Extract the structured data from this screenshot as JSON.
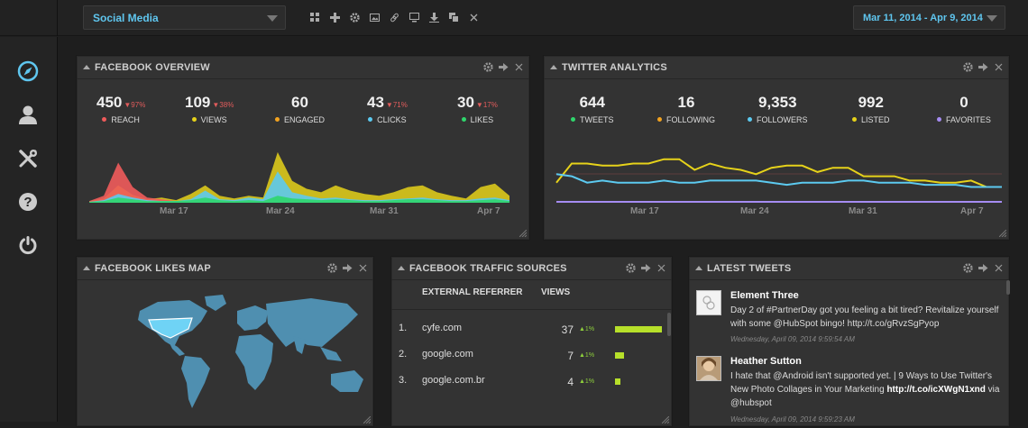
{
  "topbar": {
    "dashboard_name": "Social Media",
    "date_range": "Mar 11, 2014 - Apr 9, 2014",
    "tools": [
      "grid-icon",
      "add-icon",
      "gear-icon",
      "image-icon",
      "link-icon",
      "monitor-icon",
      "download-icon",
      "copy-icon",
      "close-icon"
    ]
  },
  "sidebar": {
    "icons": [
      "compass-icon",
      "user-icon",
      "tools-icon",
      "help-icon",
      "power-icon"
    ]
  },
  "colors": {
    "accent": "#5fc6ef",
    "red": "#ef5b5b",
    "yellow": "#e6d21a",
    "orange": "#f3a31f",
    "blue": "#5ccaf0",
    "green": "#2fd66c",
    "purple": "#a58cf2",
    "lime": "#b7e02a"
  },
  "facebook_overview": {
    "title": "FACEBOOK OVERVIEW",
    "stats": [
      {
        "value": "450",
        "change": "▼97%",
        "label": "REACH",
        "color": "#ef5b5b"
      },
      {
        "value": "109",
        "change": "▼38%",
        "label": "VIEWS",
        "color": "#e6d21a"
      },
      {
        "value": "60",
        "change": "",
        "label": "ENGAGED",
        "color": "#f3a31f"
      },
      {
        "value": "43",
        "change": "▼71%",
        "label": "CLICKS",
        "color": "#5ccaf0"
      },
      {
        "value": "30",
        "change": "▼17%",
        "label": "LIKES",
        "color": "#2fd66c"
      }
    ],
    "chart_data": {
      "type": "area",
      "x": [
        "Mar 11",
        "Mar 12",
        "Mar 13",
        "Mar 14",
        "Mar 15",
        "Mar 16",
        "Mar 17",
        "Mar 18",
        "Mar 19",
        "Mar 20",
        "Mar 21",
        "Mar 22",
        "Mar 23",
        "Mar 24",
        "Mar 25",
        "Mar 26",
        "Mar 27",
        "Mar 28",
        "Mar 29",
        "Mar 30",
        "Mar 31",
        "Apr 1",
        "Apr 2",
        "Apr 3",
        "Apr 4",
        "Apr 5",
        "Apr 6",
        "Apr 7",
        "Apr 8",
        "Apr 9"
      ],
      "tick_labels": [
        "Mar 17",
        "Mar 24",
        "Mar 31",
        "Apr 7"
      ],
      "series": [
        {
          "color": "#e6d21a",
          "values": [
            2,
            5,
            20,
            9,
            4,
            6,
            3,
            10,
            20,
            8,
            5,
            8,
            6,
            58,
            25,
            16,
            12,
            20,
            14,
            10,
            8,
            12,
            18,
            20,
            12,
            8,
            5,
            18,
            22,
            8
          ]
        },
        {
          "color": "#ef5b5b",
          "values": [
            2,
            8,
            46,
            18,
            6,
            4,
            2,
            3,
            4,
            2,
            2,
            3,
            2,
            4,
            3,
            2,
            2,
            3,
            2,
            2,
            2,
            2,
            3,
            2,
            2,
            2,
            2,
            3,
            3,
            2
          ]
        },
        {
          "color": "#5ccaf0",
          "values": [
            1,
            3,
            10,
            6,
            3,
            2,
            2,
            4,
            14,
            4,
            3,
            6,
            4,
            36,
            12,
            8,
            5,
            6,
            4,
            3,
            3,
            4,
            5,
            6,
            4,
            3,
            3,
            5,
            6,
            3
          ]
        },
        {
          "color": "#2fd66c",
          "values": [
            1,
            2,
            6,
            4,
            2,
            2,
            2,
            3,
            6,
            3,
            2,
            3,
            2,
            8,
            5,
            4,
            3,
            4,
            3,
            2,
            2,
            3,
            4,
            4,
            3,
            2,
            2,
            3,
            4,
            2
          ]
        }
      ]
    }
  },
  "twitter_analytics": {
    "title": "TWITTER ANALYTICS",
    "stats": [
      {
        "value": "644",
        "label": "TWEETS",
        "color": "#2fd66c"
      },
      {
        "value": "16",
        "label": "FOLLOWING",
        "color": "#f3a31f"
      },
      {
        "value": "9,353",
        "label": "FOLLOWERS",
        "color": "#5ccaf0"
      },
      {
        "value": "992",
        "label": "LISTED",
        "color": "#e6d21a"
      },
      {
        "value": "0",
        "label": "FAVORITES",
        "color": "#a58cf2"
      }
    ],
    "chart_data": {
      "type": "line",
      "x": [
        "Mar 11",
        "Mar 12",
        "Mar 13",
        "Mar 14",
        "Mar 15",
        "Mar 16",
        "Mar 17",
        "Mar 18",
        "Mar 19",
        "Mar 20",
        "Mar 21",
        "Mar 22",
        "Mar 23",
        "Mar 24",
        "Mar 25",
        "Mar 26",
        "Mar 27",
        "Mar 28",
        "Mar 29",
        "Mar 30",
        "Mar 31",
        "Apr 1",
        "Apr 2",
        "Apr 3",
        "Apr 4",
        "Apr 5",
        "Apr 6",
        "Apr 7",
        "Apr 8",
        "Apr 9"
      ],
      "tick_labels": [
        "Mar 17",
        "Mar 24",
        "Mar 31",
        "Apr 7"
      ],
      "series": [
        {
          "color": "#e6d21a",
          "values": [
            9,
            18,
            18,
            17,
            17,
            18,
            18,
            20,
            20,
            15,
            18,
            16,
            15,
            13,
            16,
            17,
            17,
            14,
            16,
            16,
            12,
            12,
            12,
            10,
            10,
            9,
            9,
            10,
            7,
            7
          ]
        },
        {
          "color": "#5ccaf0",
          "values": [
            13,
            12,
            9,
            10,
            9,
            9,
            9,
            10,
            9,
            9,
            10,
            10,
            10,
            10,
            9,
            8,
            9,
            9,
            9,
            10,
            10,
            9,
            9,
            9,
            8,
            8,
            8,
            7,
            7,
            7
          ]
        },
        {
          "color": "#a58cf2",
          "values": [
            0,
            0,
            0,
            0,
            0,
            0,
            0,
            0,
            0,
            0,
            0,
            0,
            0,
            0,
            0,
            0,
            0,
            0,
            0,
            0,
            0,
            0,
            0,
            0,
            0,
            0,
            0,
            0,
            0,
            0
          ]
        }
      ]
    }
  },
  "likes_map": {
    "title": "FACEBOOK LIKES MAP"
  },
  "traffic_sources": {
    "title": "FACEBOOK TRAFFIC SOURCES",
    "col_referrer": "EXTERNAL REFERRER",
    "col_views": "VIEWS",
    "rows": [
      {
        "index": "1.",
        "site": "cyfe.com",
        "views": "37",
        "change": "▲1%",
        "bar_fraction": 1.0
      },
      {
        "index": "2.",
        "site": "google.com",
        "views": "7",
        "change": "▲1%",
        "bar_fraction": 0.19
      },
      {
        "index": "3.",
        "site": "google.com.br",
        "views": "4",
        "change": "▲1%",
        "bar_fraction": 0.11
      }
    ]
  },
  "latest_tweets": {
    "title": "LATEST TWEETS",
    "tweets": [
      {
        "name": "Element Three",
        "text": "Day 2 of #PartnerDay got you feeling a bit tired? Revitalize yourself with some @HubSpot bingo! http://t.co/gRvzSgPyop",
        "date": "Wednesday, April 09, 2014 9:59:54 AM"
      },
      {
        "name": "Heather Sutton",
        "text_pre": "I hate that @Android isn't supported yet. | 9 Ways to Use Twitter's New Photo Collages in Your Marketing ",
        "text_link": "http://t.co/icXWgN1xnd",
        "text_post": " via @hubspot",
        "date": "Wednesday, April 09, 2014 9:59:23 AM"
      }
    ]
  }
}
